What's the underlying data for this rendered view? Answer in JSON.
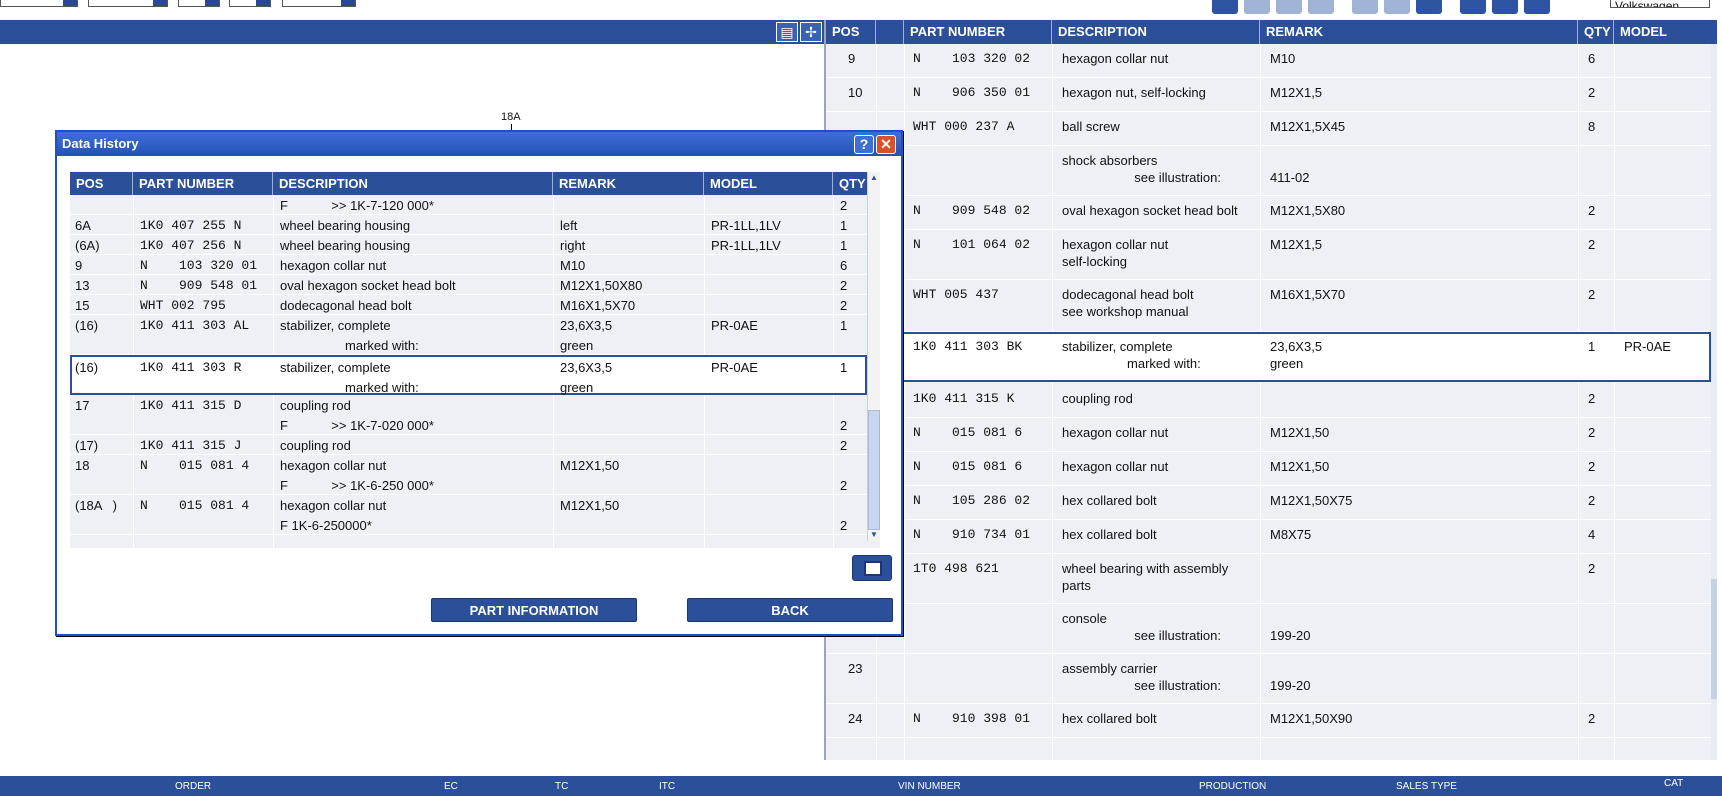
{
  "topbar": {
    "model_value": "Volkswagen"
  },
  "illustration": {
    "callout": "18A"
  },
  "right_table": {
    "headers": [
      "POS",
      "PART NUMBER",
      "DESCRIPTION",
      "REMARK",
      "QTY",
      "MODEL"
    ],
    "rows": [
      {
        "pos": "9",
        "part": "N    103 320 02",
        "desc": "hexagon collar nut",
        "remark": "M10",
        "qty": "6",
        "model": ""
      },
      {
        "pos": "10",
        "part": "N    906 350 01",
        "desc": "hexagon nut, self-locking",
        "remark": "M12X1,5",
        "qty": "2",
        "model": ""
      },
      {
        "pos": "",
        "part": "WHT 000 237 A",
        "desc": "ball screw",
        "remark": "M12X1,5X45",
        "qty": "8",
        "model": ""
      },
      {
        "pos": "",
        "part": "",
        "desc": "shock absorbers\n                    see illustration:",
        "remark": "\n411-02",
        "qty": "",
        "model": ""
      },
      {
        "pos": "",
        "part": "N    909 548 02",
        "desc": "oval hexagon socket head bolt",
        "remark": "M12X1,5X80",
        "qty": "2",
        "model": ""
      },
      {
        "pos": "",
        "part": "N    101 064 02",
        "desc": "hexagon collar nut\nself-locking",
        "remark": "M12X1,5",
        "qty": "2",
        "model": ""
      },
      {
        "pos": "",
        "part": "WHT 005 437",
        "desc": "dodecagonal head bolt\nsee workshop manual",
        "remark": "M16X1,5X70",
        "qty": "2",
        "model": ""
      },
      {
        "pos": "",
        "part": "1K0 411 303 BK",
        "desc": "stabilizer, complete\n                  marked with:",
        "remark": "23,6X3,5\ngreen",
        "qty": "1",
        "model": "PR-0AE"
      },
      {
        "pos": "",
        "part": "1K0 411 315 K",
        "desc": "coupling rod",
        "remark": "",
        "qty": "2",
        "model": ""
      },
      {
        "pos": "",
        "part": "N    015 081 6",
        "desc": "hexagon collar nut",
        "remark": "M12X1,50",
        "qty": "2",
        "model": ""
      },
      {
        "pos": "",
        "part": "N    015 081 6",
        "desc": "hexagon collar nut",
        "remark": "M12X1,50",
        "qty": "2",
        "model": ""
      },
      {
        "pos": "",
        "part": "N    105 286 02",
        "desc": "hex collared bolt",
        "remark": "M12X1,50X75",
        "qty": "2",
        "model": ""
      },
      {
        "pos": "",
        "part": "N    910 734 01",
        "desc": "hex collared bolt",
        "remark": "M8X75",
        "qty": "4",
        "model": ""
      },
      {
        "pos": "",
        "part": "1T0 498 621",
        "desc": "wheel bearing with assembly\nparts",
        "remark": "",
        "qty": "2",
        "model": ""
      },
      {
        "pos": "",
        "part": "",
        "desc": "console\n                    see illustration:",
        "remark": "\n199-20",
        "qty": "",
        "model": ""
      },
      {
        "pos": "23",
        "part": "",
        "desc": "assembly carrier\n                    see illustration:",
        "remark": "\n199-20",
        "qty": "",
        "model": ""
      },
      {
        "pos": "24",
        "part": "N    910 398 01",
        "desc": "hex collared bolt",
        "remark": "M12X1,50X90",
        "qty": "2",
        "model": ""
      }
    ]
  },
  "statusbar": {
    "labels": [
      "ORDER",
      "EC",
      "TC",
      "ITC",
      "VIN NUMBER",
      "PRODUCTION",
      "SALES TYPE",
      "CAT"
    ]
  },
  "dialog": {
    "title": "Data History",
    "help_glyph": "?",
    "close_glyph": "✕",
    "headers": [
      "POS",
      "PART NUMBER",
      "DESCRIPTION",
      "REMARK",
      "MODEL",
      "QTY"
    ],
    "rows": [
      {
        "pos": "",
        "part": "",
        "desc": "F            >> 1K-7-120 000*",
        "remark": "",
        "model": "",
        "qty": "2"
      },
      {
        "pos": "6A",
        "part": "1K0 407 255 N",
        "desc": "wheel bearing housing",
        "remark": "left",
        "model": "PR-1LL,1LV",
        "qty": "1"
      },
      {
        "pos": "(6A)",
        "part": "1K0 407 256 N",
        "desc": "wheel bearing housing",
        "remark": "right",
        "model": "PR-1LL,1LV",
        "qty": "1"
      },
      {
        "pos": "9",
        "part": "N    103 320 01",
        "desc": "hexagon collar nut",
        "remark": "M10",
        "model": "",
        "qty": "6"
      },
      {
        "pos": "13",
        "part": "N    909 548 01",
        "desc": "oval hexagon socket head bolt",
        "remark": "M12X1,50X80",
        "model": "",
        "qty": "2"
      },
      {
        "pos": "15",
        "part": "WHT 002 795",
        "desc": "dodecagonal head bolt",
        "remark": "M16X1,5X70",
        "model": "",
        "qty": "2"
      },
      {
        "pos": "(16)",
        "part": "1K0 411 303 AL",
        "desc": "stabilizer, complete\n                  marked with:",
        "remark": "23,6X3,5\ngreen",
        "model": "PR-0AE",
        "qty": "1"
      },
      {
        "pos": "(16)",
        "part": "1K0 411 303 R",
        "desc": "stabilizer, complete\n                  marked with:",
        "remark": "23,6X3,5\ngreen",
        "model": "PR-0AE",
        "qty": "1"
      },
      {
        "pos": "17",
        "part": "1K0 411 315 D",
        "desc": "coupling rod\nF            >> 1K-7-020 000*",
        "remark": "",
        "model": "",
        "qty": "\n2"
      },
      {
        "pos": "(17)",
        "part": "1K0 411 315 J",
        "desc": "coupling rod",
        "remark": "",
        "model": "",
        "qty": "2"
      },
      {
        "pos": "18",
        "part": "N    015 081 4",
        "desc": "hexagon collar nut\nF            >> 1K-6-250 000*",
        "remark": "M12X1,50",
        "model": "",
        "qty": "\n2"
      },
      {
        "pos": "(18A   )",
        "part": "N    015 081 4",
        "desc": "hexagon collar nut\nF 1K-6-250000*",
        "remark": "M12X1,50",
        "model": "",
        "qty": "\n2"
      }
    ],
    "part_info_label": "PART INFORMATION",
    "back_label": "BACK"
  }
}
